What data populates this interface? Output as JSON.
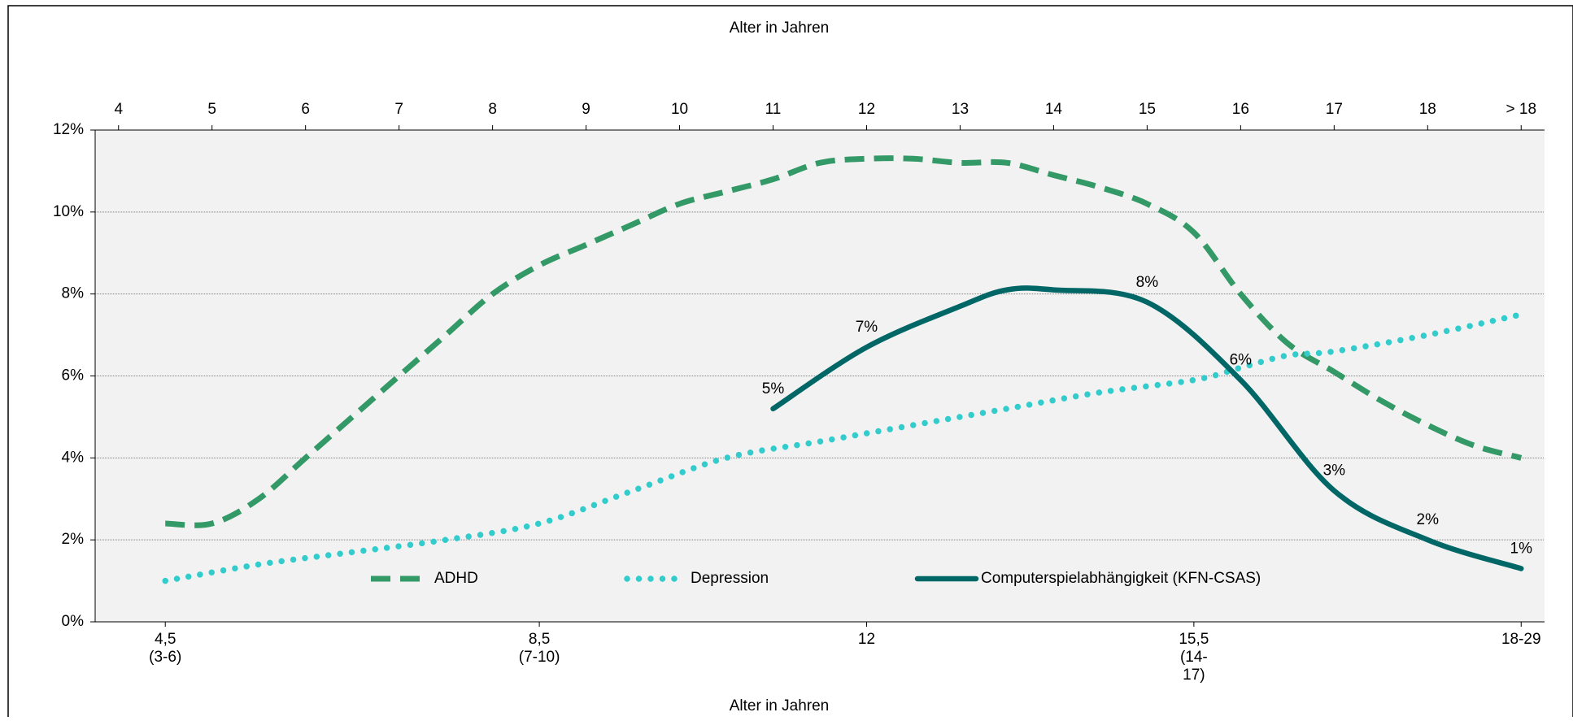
{
  "chart_data": {
    "type": "line",
    "x2_label": "Alter in Jahren",
    "x_label": "Alter in Jahren",
    "xlim": [
      3.75,
      19.25
    ],
    "x2ticks": [
      4,
      5,
      6,
      7,
      8,
      9,
      10,
      11,
      12,
      13,
      14,
      15,
      16,
      17,
      18,
      {
        "value": 19,
        "label": "> 18"
      }
    ],
    "xticks": [
      {
        "value": 4.5,
        "label": "4,5\n(3-6)"
      },
      {
        "value": 8.5,
        "label": "8,5\n(7-10)"
      },
      12,
      {
        "value": 15.5,
        "label": "15,5\n(14-\n17)"
      },
      {
        "value": 19,
        "label": "18-29"
      }
    ],
    "ylim": [
      0,
      12
    ],
    "yticks": [
      {
        "value": 0,
        "label": "0%"
      },
      {
        "value": 2,
        "label": "2%"
      },
      {
        "value": 4,
        "label": "4%"
      },
      {
        "value": 6,
        "label": "6%"
      },
      {
        "value": 8,
        "label": "8%"
      },
      {
        "value": 10,
        "label": "10%"
      },
      {
        "value": 12,
        "label": "12%"
      }
    ],
    "grid": true,
    "legend": "lower center",
    "series": [
      {
        "name": "ADHD",
        "color": "#339966",
        "style": "dashed",
        "x": [
          4.5,
          5,
          5.5,
          6,
          6.5,
          7,
          7.5,
          8,
          8.5,
          9,
          9.5,
          10,
          10.5,
          11,
          11.5,
          12,
          12.5,
          13,
          13.5,
          14,
          14.5,
          15,
          15.5,
          16,
          16.5,
          17,
          17.5,
          18,
          18.5,
          19
        ],
        "values": [
          2.4,
          2.4,
          3.0,
          4.0,
          5.0,
          6.0,
          7.0,
          8.0,
          8.7,
          9.2,
          9.7,
          10.2,
          10.5,
          10.8,
          11.2,
          11.3,
          11.3,
          11.2,
          11.2,
          10.9,
          10.6,
          10.2,
          9.5,
          8.0,
          6.8,
          6.1,
          5.4,
          4.8,
          4.3,
          4.0
        ]
      },
      {
        "name": "Depression",
        "color": "#33cccc",
        "style": "dotted",
        "x": [
          4.5,
          5.5,
          6.5,
          7.5,
          8.5,
          9.5,
          10.5,
          11.5,
          12.5,
          13.5,
          14.5,
          15.5,
          16,
          16.5,
          17,
          18,
          19
        ],
        "values": [
          1.0,
          1.4,
          1.7,
          2.0,
          2.4,
          3.2,
          4.0,
          4.4,
          4.8,
          5.2,
          5.6,
          5.9,
          6.2,
          6.5,
          6.6,
          7.0,
          7.5
        ]
      },
      {
        "name": "Computerspielabhängigkeit (KFN-CSAS)",
        "color": "#006666",
        "style": "solid",
        "x": [
          11,
          12,
          13,
          13.5,
          14,
          15,
          16,
          17,
          18,
          19
        ],
        "values": [
          5.2,
          6.7,
          7.7,
          8.1,
          8.1,
          7.8,
          5.9,
          3.2,
          2.0,
          1.3
        ],
        "value_labels": [
          "5%",
          "7%",
          null,
          null,
          null,
          "8%",
          "6%",
          "3%",
          "2%",
          "1%"
        ]
      }
    ]
  }
}
